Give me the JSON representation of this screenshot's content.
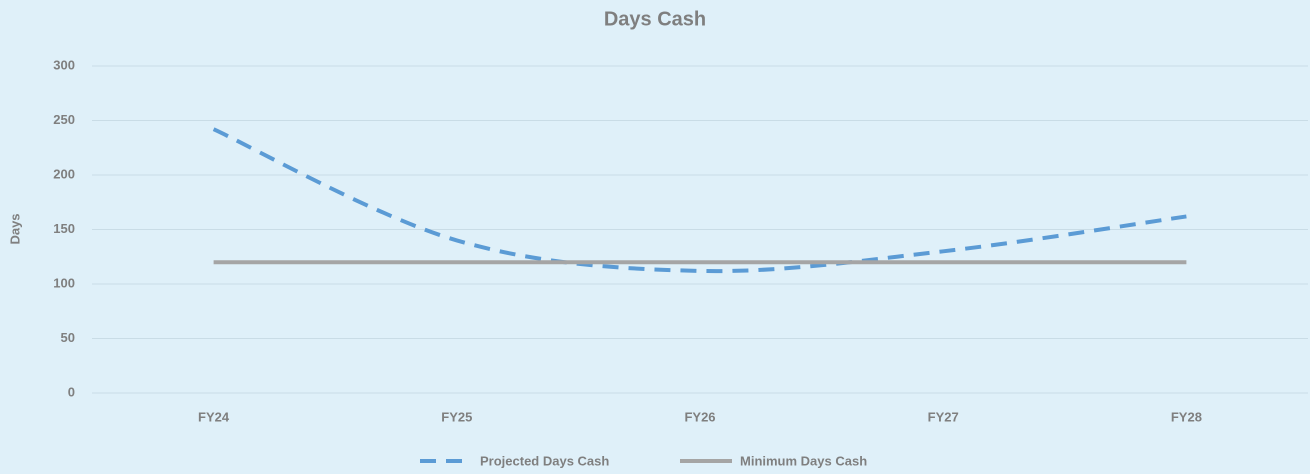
{
  "chart_data": {
    "type": "line",
    "title": "Days Cash",
    "y_label": "Days",
    "categories": [
      "FY24",
      "FY25",
      "FY26",
      "FY27",
      "FY28"
    ],
    "series": [
      {
        "name": "Projected Days Cash",
        "color": "#5b9bd5",
        "dashed": true,
        "values": [
          242,
          140,
          112,
          130,
          162
        ]
      },
      {
        "name": "Minimum Days Cash",
        "color": "#a5a5a5",
        "dashed": false,
        "values": [
          120,
          120,
          120,
          120,
          120
        ]
      }
    ],
    "ylim": [
      0,
      300
    ],
    "yticks": [
      0,
      50,
      100,
      150,
      200,
      250,
      300
    ],
    "grid": true,
    "smooth": true,
    "legend": "bottom"
  }
}
